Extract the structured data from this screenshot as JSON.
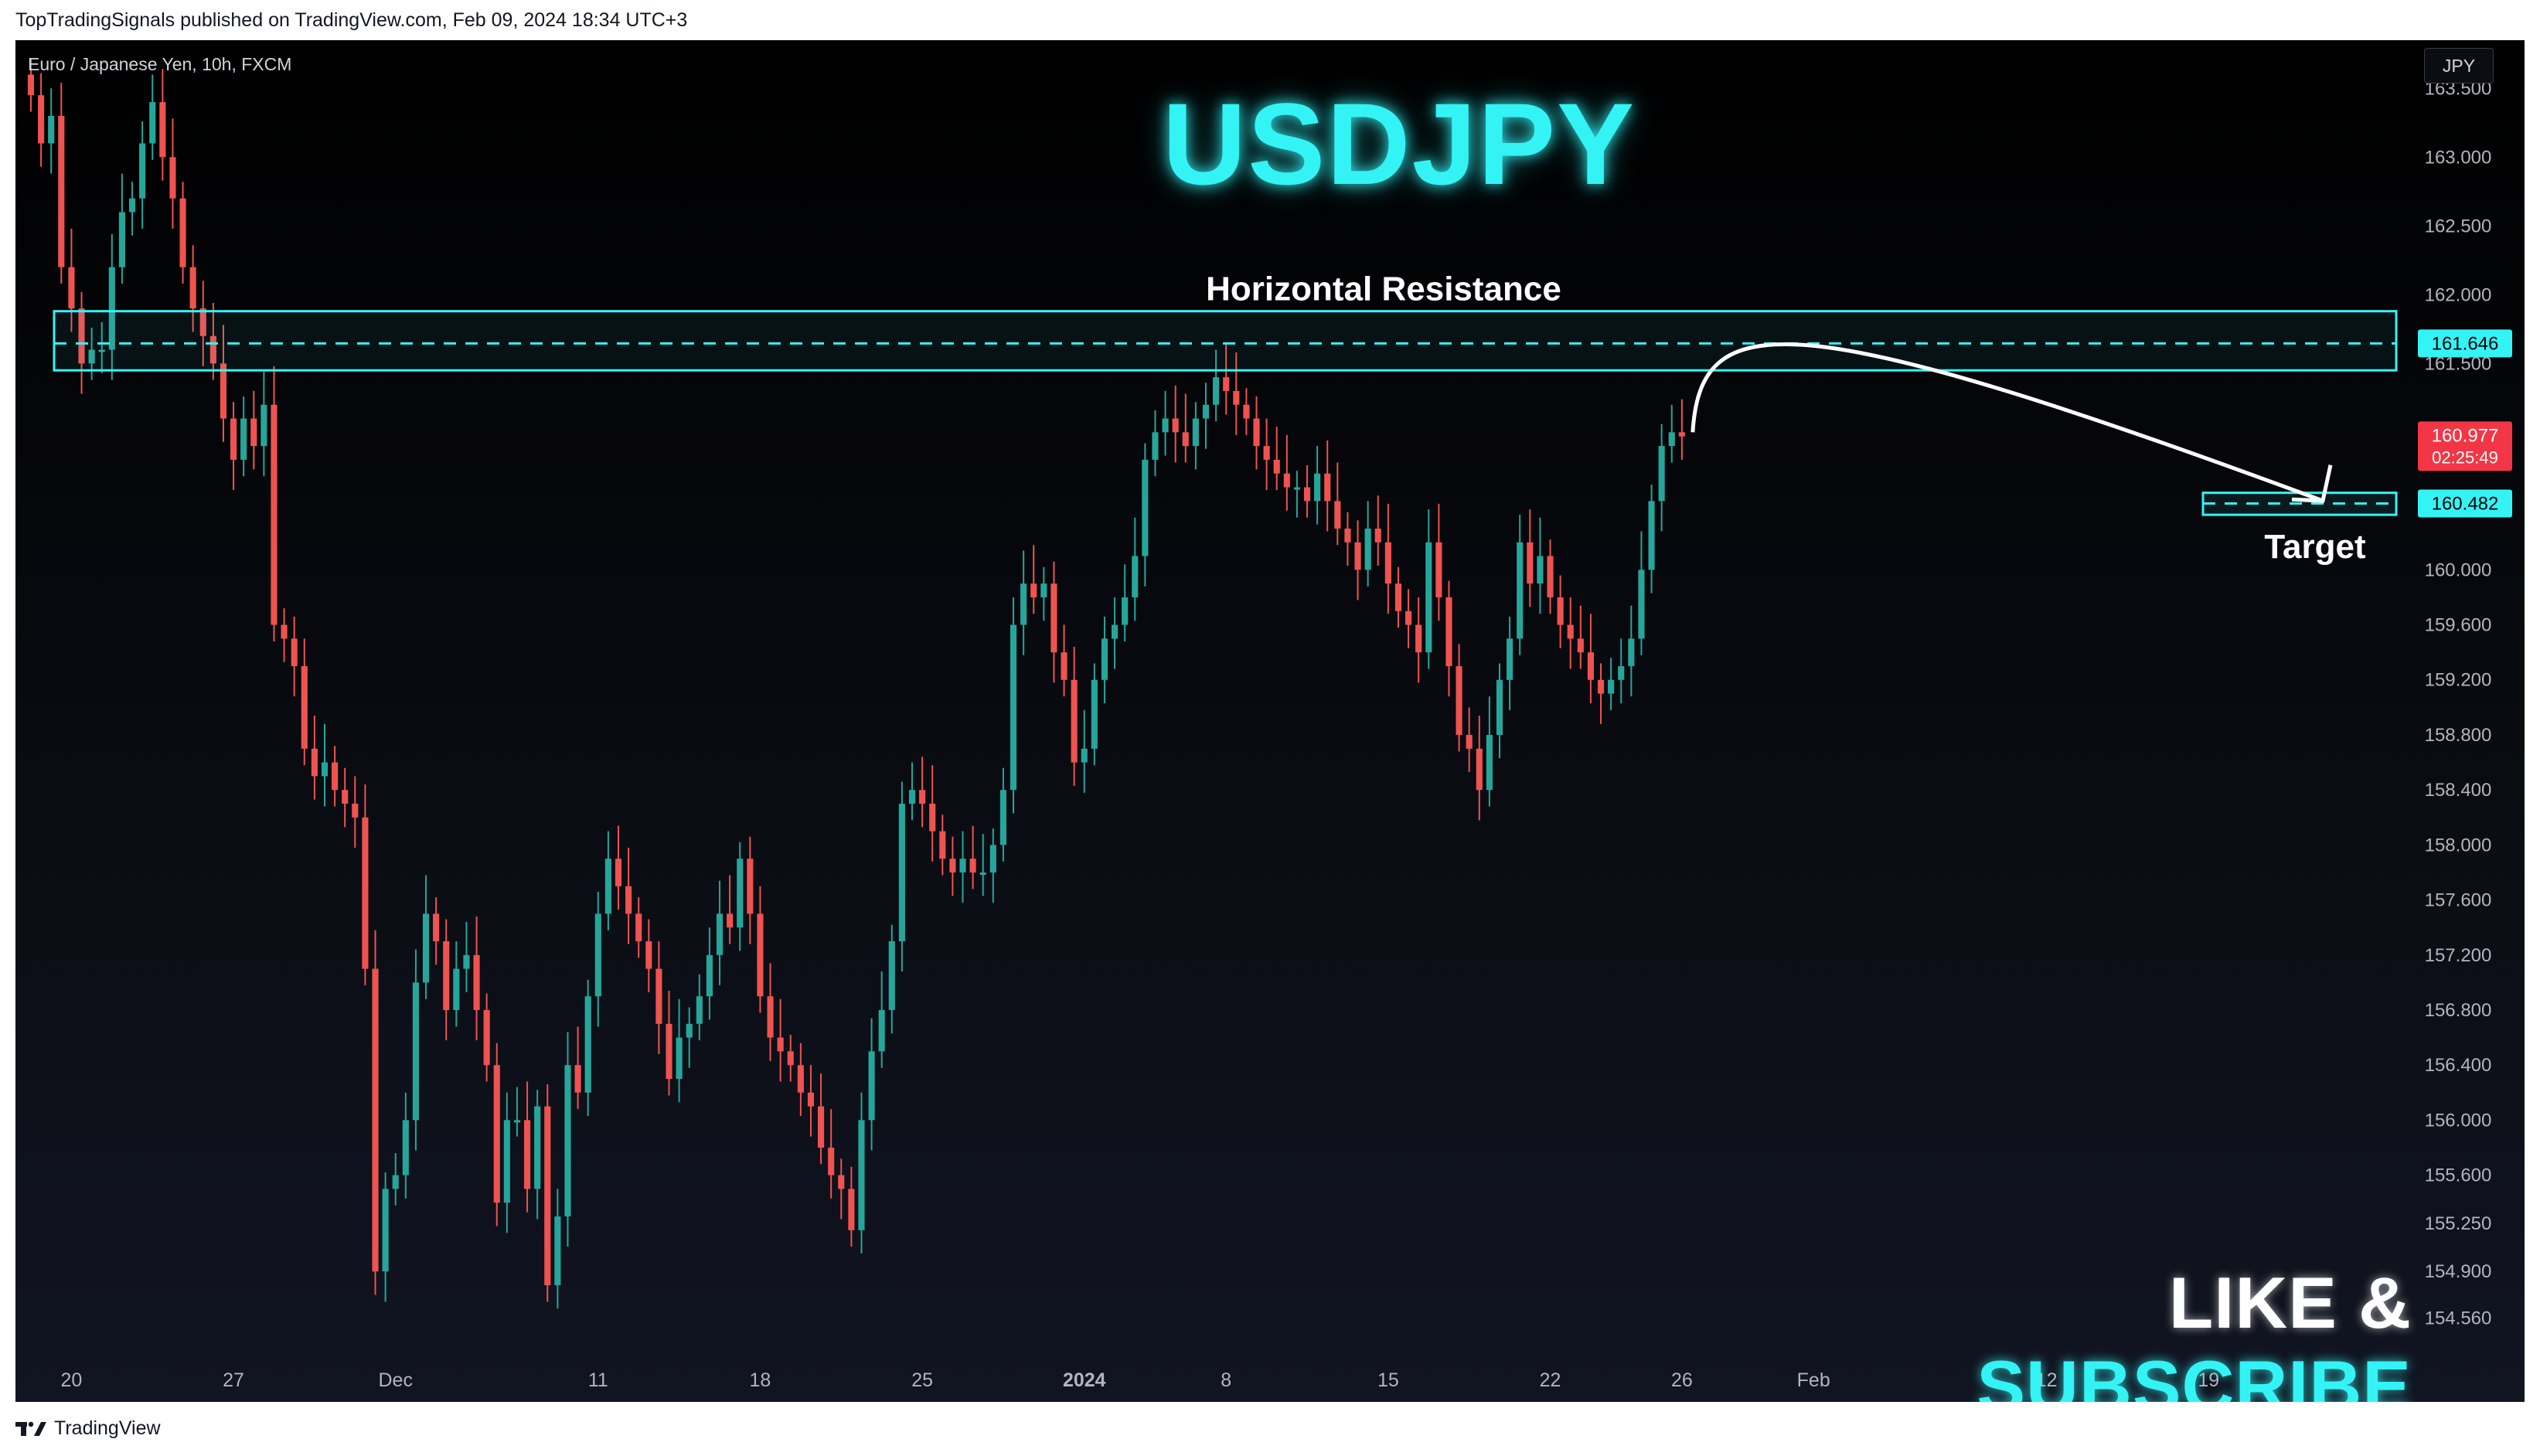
{
  "header": {
    "published_line": "TopTradingSignals published on TradingView.com, Feb 09, 2024 18:34 UTC+3"
  },
  "toolbar": {
    "symbol_line": "Euro / Japanese Yen, 10h, FXCM",
    "currency": "JPY"
  },
  "overlay": {
    "title": "USDJPY",
    "resistance_label": "Horizontal Resistance",
    "target_label": "Target",
    "like_word": "LIKE &",
    "subscribe_word": "SUBSCRIBE"
  },
  "footer": {
    "brand": "TradingView",
    "logo_icon": "tradingview-logo-icon"
  },
  "colors": {
    "up": "#26a69a",
    "down": "#ef5350",
    "accent": "#34f3f5",
    "last_price_bg": "#f23645"
  },
  "chart_data": {
    "type": "candlestick",
    "title": "USDJPY",
    "ylim": [
      154.3,
      163.85
    ],
    "x_index_range": [
      0,
      232
    ],
    "y_ticks": [
      "163.500",
      "163.000",
      "162.500",
      "162.000",
      "161.500",
      "160.000",
      "159.600",
      "159.200",
      "158.800",
      "158.400",
      "158.000",
      "157.600",
      "157.200",
      "156.800",
      "156.400",
      "156.000",
      "155.600",
      "155.250",
      "154.900",
      "154.560"
    ],
    "x_ticks": [
      {
        "label": "20",
        "x": 4
      },
      {
        "label": "27",
        "x": 20
      },
      {
        "label": "Dec",
        "x": 36
      },
      {
        "label": "11",
        "x": 56
      },
      {
        "label": "18",
        "x": 72
      },
      {
        "label": "25",
        "x": 88
      },
      {
        "label": "2024",
        "x": 104,
        "bold": true
      },
      {
        "label": "8",
        "x": 118
      },
      {
        "label": "15",
        "x": 134
      },
      {
        "label": "22",
        "x": 150
      },
      {
        "label": "26",
        "x": 163
      },
      {
        "label": "Feb",
        "x": 176
      },
      {
        "label": "12",
        "x": 199
      },
      {
        "label": "19",
        "x": 215
      }
    ],
    "candles_close": [
      163.45,
      163.1,
      163.3,
      162.2,
      161.9,
      161.5,
      161.6,
      161.6,
      162.2,
      162.6,
      162.7,
      163.1,
      163.4,
      163.0,
      162.7,
      162.2,
      161.9,
      161.7,
      161.5,
      161.1,
      160.8,
      161.1,
      160.9,
      161.2,
      159.6,
      159.5,
      159.3,
      158.7,
      158.5,
      158.6,
      158.4,
      158.3,
      158.2,
      157.1,
      154.9,
      155.5,
      155.6,
      156.0,
      157.0,
      157.5,
      157.3,
      156.8,
      157.1,
      157.2,
      156.8,
      156.4,
      155.4,
      156.0,
      156.0,
      155.5,
      156.1,
      154.8,
      155.3,
      156.4,
      156.2,
      156.9,
      157.5,
      157.9,
      157.7,
      157.5,
      157.3,
      157.1,
      156.7,
      156.3,
      156.6,
      156.7,
      156.9,
      157.2,
      157.5,
      157.4,
      157.9,
      157.5,
      156.9,
      156.6,
      156.5,
      156.4,
      156.2,
      156.1,
      155.8,
      155.6,
      155.5,
      155.2,
      156.0,
      156.5,
      156.8,
      157.3,
      158.3,
      158.4,
      158.3,
      158.1,
      157.9,
      157.8,
      157.9,
      157.8,
      157.8,
      158.0,
      158.4,
      159.6,
      159.9,
      159.8,
      159.9,
      159.4,
      159.2,
      158.6,
      158.7,
      159.2,
      159.5,
      159.6,
      159.8,
      160.1,
      160.8,
      161.0,
      161.1,
      161.0,
      160.9,
      161.1,
      161.2,
      161.4,
      161.3,
      161.2,
      161.1,
      160.9,
      160.8,
      160.7,
      160.6,
      160.6,
      160.5,
      160.7,
      160.5,
      160.3,
      160.2,
      160.0,
      160.3,
      160.2,
      159.9,
      159.7,
      159.6,
      159.4,
      160.2,
      159.8,
      159.3,
      158.8,
      158.7,
      158.4,
      158.8,
      159.2,
      159.5,
      160.2,
      159.9,
      160.1,
      159.8,
      159.6,
      159.5,
      159.4,
      159.2,
      159.1,
      159.2,
      159.3,
      159.5,
      160.0,
      160.5,
      160.9,
      161.0,
      160.97
    ],
    "current_price": "160.977",
    "countdown": "02:25:49",
    "resistance_level": "161.646",
    "resistance_zone": [
      161.45,
      161.88
    ],
    "target_level": "160.482",
    "target_zone": [
      160.4,
      160.56
    ]
  }
}
